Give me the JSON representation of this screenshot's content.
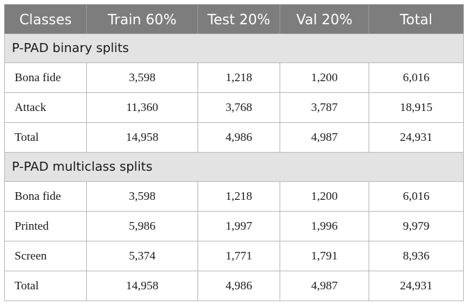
{
  "headers": [
    "Classes",
    "Train 60%",
    "Test 20%",
    "Val 20%",
    "Total"
  ],
  "sections": [
    {
      "title": "P-PAD binary splits",
      "rows": [
        [
          "Bona fide",
          "3,598",
          "1,218",
          "1,200",
          "6,016"
        ],
        [
          "Attack",
          "11,360",
          "3,768",
          "3,787",
          "18,915"
        ],
        [
          "Total",
          "14,958",
          "4,986",
          "4,987",
          "24,931"
        ]
      ]
    },
    {
      "title": "P-PAD multiclass splits",
      "rows": [
        [
          "Bona fide",
          "3,598",
          "1,218",
          "1,200",
          "6,016"
        ],
        [
          "Printed",
          "5,986",
          "1,997",
          "1,996",
          "9,979"
        ],
        [
          "Screen",
          "5,374",
          "1,771",
          "1,791",
          "8,936"
        ],
        [
          "Total",
          "14,958",
          "4,986",
          "4,987",
          "24,931"
        ]
      ]
    }
  ],
  "colors": {
    "header_bg": "#7d7d7d",
    "section_bg": "#e3e3e3",
    "border": "#b9b9b9"
  }
}
